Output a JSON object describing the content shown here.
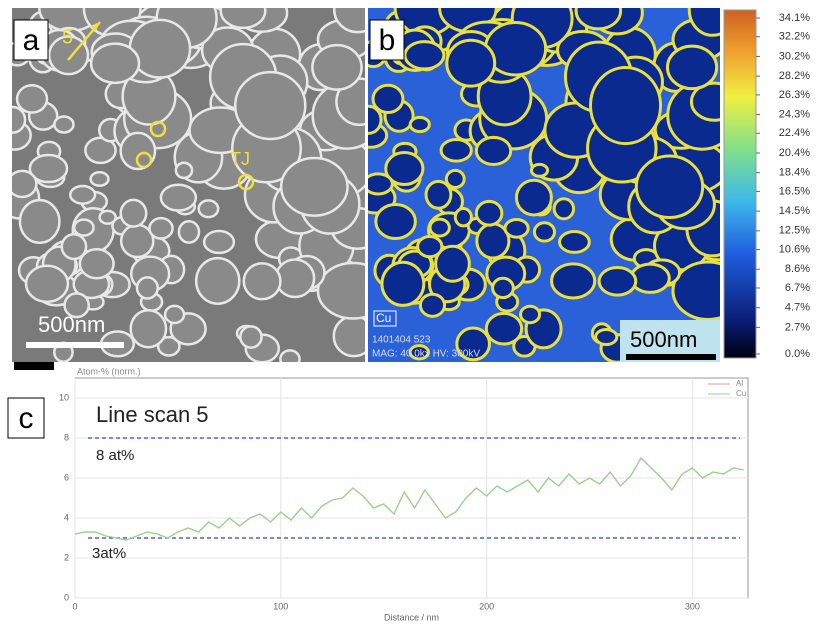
{
  "panels": {
    "a": {
      "label": "a",
      "arrow_label": "5",
      "annotation": "TJ",
      "scale_bar": "500nm"
    },
    "b": {
      "label": "b",
      "element": "Cu",
      "meta_line1": "1401404 523",
      "meta_line2": "MAG: 40.0kx HV: 300kV",
      "scale_bar": "500nm"
    },
    "c": {
      "label": "c"
    }
  },
  "colorbar": {
    "clim": [
      0,
      34.1
    ],
    "ticks": [
      {
        "value": 34.1,
        "label": "34.1%"
      },
      {
        "value": 32.2,
        "label": "32.2%"
      },
      {
        "value": 30.2,
        "label": "30.2%"
      },
      {
        "value": 28.2,
        "label": "28.2%"
      },
      {
        "value": 26.3,
        "label": "26.3%"
      },
      {
        "value": 24.3,
        "label": "24.3%"
      },
      {
        "value": 22.4,
        "label": "22.4%"
      },
      {
        "value": 20.4,
        "label": "20.4%"
      },
      {
        "value": 18.4,
        "label": "18.4%"
      },
      {
        "value": 16.5,
        "label": "16.5%"
      },
      {
        "value": 14.5,
        "label": "14.5%"
      },
      {
        "value": 12.5,
        "label": "12.5%"
      },
      {
        "value": 10.6,
        "label": "10.6%"
      },
      {
        "value": 8.6,
        "label": "8.6%"
      },
      {
        "value": 6.7,
        "label": "6.7%"
      },
      {
        "value": 4.7,
        "label": "4.7%"
      },
      {
        "value": 2.7,
        "label": "2.7%"
      },
      {
        "value": 0.0,
        "label": "0.0%"
      }
    ]
  },
  "chart_data": {
    "type": "line",
    "title": "Line scan 5",
    "y_label": "Atom-% (norm.)",
    "x_label": "Distance / nm",
    "xlim": [
      0,
      327
    ],
    "ylim": [
      0,
      11
    ],
    "xticks": [
      0,
      100,
      200,
      300
    ],
    "yticks": [
      0,
      2,
      4,
      6,
      8,
      10
    ],
    "grid": true,
    "legend": [
      {
        "name": "Al",
        "color": "#d9a0a0"
      },
      {
        "name": "Cu",
        "color": "#9ccf8c"
      }
    ],
    "reference_lines": [
      {
        "value": 8,
        "label": "8 at%"
      },
      {
        "value": 3,
        "label": "3at%"
      }
    ],
    "series": [
      {
        "name": "Cu",
        "color": "#9ccf8c",
        "x": [
          0,
          5,
          10,
          15,
          20,
          25,
          30,
          35,
          40,
          45,
          50,
          55,
          60,
          65,
          70,
          75,
          80,
          85,
          90,
          95,
          100,
          105,
          110,
          115,
          120,
          125,
          130,
          135,
          140,
          145,
          150,
          155,
          160,
          165,
          170,
          175,
          180,
          185,
          190,
          195,
          200,
          205,
          210,
          215,
          220,
          225,
          230,
          235,
          240,
          245,
          250,
          255,
          260,
          265,
          270,
          275,
          280,
          285,
          290,
          295,
          300,
          305,
          310,
          315,
          320,
          325
        ],
        "values": [
          3.2,
          3.3,
          3.3,
          3.1,
          3.0,
          2.9,
          3.1,
          3.3,
          3.2,
          3.0,
          3.3,
          3.5,
          3.3,
          3.8,
          3.5,
          4.0,
          3.6,
          4.0,
          4.2,
          3.8,
          4.3,
          3.9,
          4.5,
          4.0,
          4.6,
          4.9,
          5.0,
          5.5,
          5.1,
          4.5,
          4.7,
          4.2,
          5.3,
          4.5,
          5.4,
          4.7,
          4.0,
          4.3,
          5.0,
          5.5,
          5.1,
          5.6,
          5.3,
          5.6,
          5.9,
          5.3,
          6.0,
          5.6,
          6.2,
          5.7,
          6.0,
          5.7,
          6.3,
          5.6,
          6.1,
          7.0,
          6.5,
          6.0,
          5.4,
          6.2,
          6.5,
          6.0,
          6.3,
          6.2,
          6.5,
          6.4
        ]
      }
    ]
  }
}
